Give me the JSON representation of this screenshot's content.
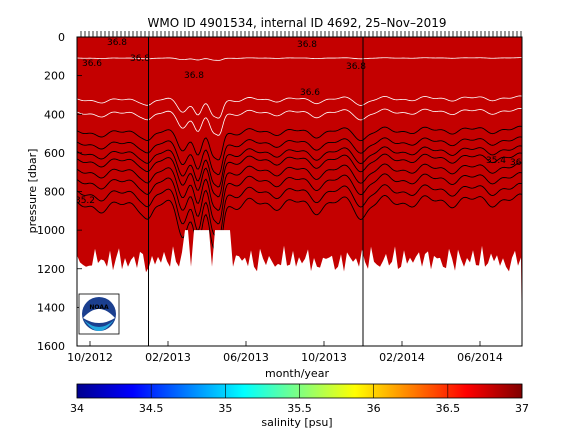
{
  "chart_data": [
    {
      "type": "heatmap",
      "title": "WMO ID 4901534, internal ID 4692, 25–Nov–2019",
      "xlabel": "month/year",
      "ylabel": "pressure [dbar]",
      "x_ticks": [
        "10/2012",
        "02/2013",
        "06/2013",
        "10/2013",
        "02/2014",
        "06/2014"
      ],
      "y_ticks": [
        0,
        200,
        400,
        600,
        800,
        1000,
        1200,
        1400,
        1600
      ],
      "ylim": [
        1600,
        0
      ],
      "y_reversed": true,
      "vertical_markers": [
        "01/2013",
        "12/2013"
      ],
      "logo": "NOAA",
      "contour_labels": [
        "36.8",
        "36.8",
        "36.8",
        "36.8",
        "36.8",
        "36.6",
        "36.6",
        "36.8",
        "35.4",
        "35.2"
      ],
      "salinity_bands_depth": {
        "columns": [
          "salinity_psu",
          "depth_dbar"
        ],
        "rows": [
          [
            36.8,
            0
          ],
          [
            36.6,
            110
          ],
          [
            36.4,
            330
          ],
          [
            36.2,
            400
          ],
          [
            36.0,
            500
          ],
          [
            35.8,
            560
          ],
          [
            35.6,
            610
          ],
          [
            35.4,
            650
          ],
          [
            35.3,
            705
          ],
          [
            35.2,
            760
          ],
          [
            35.1,
            820
          ],
          [
            35.0,
            880
          ],
          [
            34.95,
            1150
          ]
        ]
      }
    },
    {
      "type": "colorbar",
      "xlabel": "salinity [psu]",
      "range": [
        34,
        37
      ],
      "ticks": [
        "34",
        "34.5",
        "35",
        "35.5",
        "36",
        "36.5",
        "37"
      ]
    }
  ],
  "colors": {
    "colormap": [
      "#00008f",
      "#0000ff",
      "#0080ff",
      "#00ffff",
      "#80ff80",
      "#ffff00",
      "#ff8000",
      "#ff0000",
      "#800000"
    ],
    "missing": "#ffffff"
  }
}
